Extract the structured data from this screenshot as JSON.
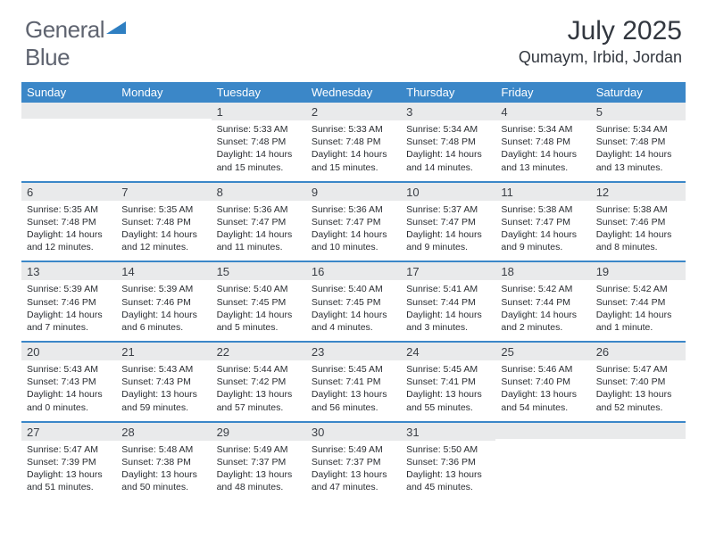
{
  "logo": {
    "part1": "General",
    "part2": "Blue"
  },
  "title": "July 2025",
  "location": "Qumaym, Irbid, Jordan",
  "colors": {
    "header_bar": "#3b87c8",
    "daynum_bg": "#e9eaeb",
    "text": "#2a2d32",
    "logo_gray": "#5f6470",
    "logo_blue": "#2f7fc2"
  },
  "weekdays": [
    "Sunday",
    "Monday",
    "Tuesday",
    "Wednesday",
    "Thursday",
    "Friday",
    "Saturday"
  ],
  "weeks": [
    [
      {
        "num": "",
        "sunrise": "",
        "sunset": "",
        "daylight": ""
      },
      {
        "num": "",
        "sunrise": "",
        "sunset": "",
        "daylight": ""
      },
      {
        "num": "1",
        "sunrise": "5:33 AM",
        "sunset": "7:48 PM",
        "daylight": "14 hours and 15 minutes."
      },
      {
        "num": "2",
        "sunrise": "5:33 AM",
        "sunset": "7:48 PM",
        "daylight": "14 hours and 15 minutes."
      },
      {
        "num": "3",
        "sunrise": "5:34 AM",
        "sunset": "7:48 PM",
        "daylight": "14 hours and 14 minutes."
      },
      {
        "num": "4",
        "sunrise": "5:34 AM",
        "sunset": "7:48 PM",
        "daylight": "14 hours and 13 minutes."
      },
      {
        "num": "5",
        "sunrise": "5:34 AM",
        "sunset": "7:48 PM",
        "daylight": "14 hours and 13 minutes."
      }
    ],
    [
      {
        "num": "6",
        "sunrise": "5:35 AM",
        "sunset": "7:48 PM",
        "daylight": "14 hours and 12 minutes."
      },
      {
        "num": "7",
        "sunrise": "5:35 AM",
        "sunset": "7:48 PM",
        "daylight": "14 hours and 12 minutes."
      },
      {
        "num": "8",
        "sunrise": "5:36 AM",
        "sunset": "7:47 PM",
        "daylight": "14 hours and 11 minutes."
      },
      {
        "num": "9",
        "sunrise": "5:36 AM",
        "sunset": "7:47 PM",
        "daylight": "14 hours and 10 minutes."
      },
      {
        "num": "10",
        "sunrise": "5:37 AM",
        "sunset": "7:47 PM",
        "daylight": "14 hours and 9 minutes."
      },
      {
        "num": "11",
        "sunrise": "5:38 AM",
        "sunset": "7:47 PM",
        "daylight": "14 hours and 9 minutes."
      },
      {
        "num": "12",
        "sunrise": "5:38 AM",
        "sunset": "7:46 PM",
        "daylight": "14 hours and 8 minutes."
      }
    ],
    [
      {
        "num": "13",
        "sunrise": "5:39 AM",
        "sunset": "7:46 PM",
        "daylight": "14 hours and 7 minutes."
      },
      {
        "num": "14",
        "sunrise": "5:39 AM",
        "sunset": "7:46 PM",
        "daylight": "14 hours and 6 minutes."
      },
      {
        "num": "15",
        "sunrise": "5:40 AM",
        "sunset": "7:45 PM",
        "daylight": "14 hours and 5 minutes."
      },
      {
        "num": "16",
        "sunrise": "5:40 AM",
        "sunset": "7:45 PM",
        "daylight": "14 hours and 4 minutes."
      },
      {
        "num": "17",
        "sunrise": "5:41 AM",
        "sunset": "7:44 PM",
        "daylight": "14 hours and 3 minutes."
      },
      {
        "num": "18",
        "sunrise": "5:42 AM",
        "sunset": "7:44 PM",
        "daylight": "14 hours and 2 minutes."
      },
      {
        "num": "19",
        "sunrise": "5:42 AM",
        "sunset": "7:44 PM",
        "daylight": "14 hours and 1 minute."
      }
    ],
    [
      {
        "num": "20",
        "sunrise": "5:43 AM",
        "sunset": "7:43 PM",
        "daylight": "14 hours and 0 minutes."
      },
      {
        "num": "21",
        "sunrise": "5:43 AM",
        "sunset": "7:43 PM",
        "daylight": "13 hours and 59 minutes."
      },
      {
        "num": "22",
        "sunrise": "5:44 AM",
        "sunset": "7:42 PM",
        "daylight": "13 hours and 57 minutes."
      },
      {
        "num": "23",
        "sunrise": "5:45 AM",
        "sunset": "7:41 PM",
        "daylight": "13 hours and 56 minutes."
      },
      {
        "num": "24",
        "sunrise": "5:45 AM",
        "sunset": "7:41 PM",
        "daylight": "13 hours and 55 minutes."
      },
      {
        "num": "25",
        "sunrise": "5:46 AM",
        "sunset": "7:40 PM",
        "daylight": "13 hours and 54 minutes."
      },
      {
        "num": "26",
        "sunrise": "5:47 AM",
        "sunset": "7:40 PM",
        "daylight": "13 hours and 52 minutes."
      }
    ],
    [
      {
        "num": "27",
        "sunrise": "5:47 AM",
        "sunset": "7:39 PM",
        "daylight": "13 hours and 51 minutes."
      },
      {
        "num": "28",
        "sunrise": "5:48 AM",
        "sunset": "7:38 PM",
        "daylight": "13 hours and 50 minutes."
      },
      {
        "num": "29",
        "sunrise": "5:49 AM",
        "sunset": "7:37 PM",
        "daylight": "13 hours and 48 minutes."
      },
      {
        "num": "30",
        "sunrise": "5:49 AM",
        "sunset": "7:37 PM",
        "daylight": "13 hours and 47 minutes."
      },
      {
        "num": "31",
        "sunrise": "5:50 AM",
        "sunset": "7:36 PM",
        "daylight": "13 hours and 45 minutes."
      },
      {
        "num": "",
        "sunrise": "",
        "sunset": "",
        "daylight": ""
      },
      {
        "num": "",
        "sunrise": "",
        "sunset": "",
        "daylight": ""
      }
    ]
  ],
  "labels": {
    "sunrise": "Sunrise:",
    "sunset": "Sunset:",
    "daylight": "Daylight:"
  }
}
